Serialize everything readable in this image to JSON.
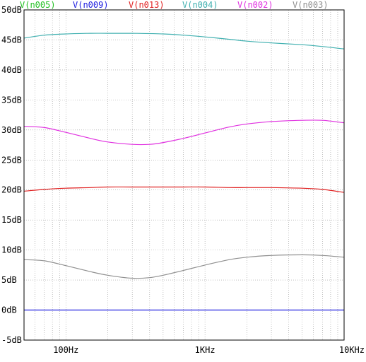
{
  "chart_data": {
    "type": "line",
    "title": "",
    "xlabel": "",
    "ylabel": "",
    "xscale": "log",
    "xlim": [
      50,
      10000
    ],
    "ylim": [
      -5,
      50
    ],
    "grid": true,
    "legend_position": "top",
    "x_ticks": [
      {
        "value": 100,
        "label": "100Hz"
      },
      {
        "value": 1000,
        "label": "1KHz"
      },
      {
        "value": 10000,
        "label": "10KHz"
      }
    ],
    "y_ticks": [
      {
        "value": 50,
        "label": "50dB"
      },
      {
        "value": 45,
        "label": "45dB"
      },
      {
        "value": 40,
        "label": "40dB"
      },
      {
        "value": 35,
        "label": "35dB"
      },
      {
        "value": 30,
        "label": "30dB"
      },
      {
        "value": 25,
        "label": "25dB"
      },
      {
        "value": 20,
        "label": "20dB"
      },
      {
        "value": 15,
        "label": "15dB"
      },
      {
        "value": 10,
        "label": "10dB"
      },
      {
        "value": 5,
        "label": "5dB"
      },
      {
        "value": 0,
        "label": "0dB"
      },
      {
        "value": -5,
        "label": "-5dB"
      }
    ],
    "series": [
      {
        "name": "V(n005)",
        "color": "#22c022",
        "x": [],
        "values": []
      },
      {
        "name": "V(n009)",
        "color": "#2020e0",
        "x": [
          50,
          100,
          200,
          500,
          1000,
          2000,
          5000,
          10000
        ],
        "values": [
          0,
          0,
          0,
          0,
          0,
          0,
          0,
          0
        ]
      },
      {
        "name": "V(n013)",
        "color": "#e02020",
        "x": [
          50,
          70,
          100,
          150,
          200,
          300,
          500,
          700,
          1000,
          1500,
          2000,
          3000,
          5000,
          7000,
          10000
        ],
        "values": [
          19.8,
          20.1,
          20.3,
          20.4,
          20.5,
          20.5,
          20.5,
          20.5,
          20.5,
          20.4,
          20.4,
          20.4,
          20.3,
          20.1,
          19.6
        ]
      },
      {
        "name": "V(n004)",
        "color": "#40b0b0",
        "x": [
          50,
          70,
          100,
          150,
          200,
          300,
          500,
          700,
          1000,
          1500,
          2000,
          3000,
          5000,
          7000,
          10000
        ],
        "values": [
          45.3,
          45.8,
          46.0,
          46.1,
          46.1,
          46.1,
          46.0,
          45.8,
          45.5,
          45.1,
          44.8,
          44.5,
          44.2,
          43.9,
          43.5
        ]
      },
      {
        "name": "V(n002)",
        "color": "#e030e0",
        "x": [
          50,
          70,
          100,
          150,
          200,
          300,
          400,
          500,
          700,
          1000,
          1500,
          2000,
          3000,
          5000,
          7000,
          10000
        ],
        "values": [
          30.6,
          30.4,
          29.6,
          28.6,
          28.0,
          27.6,
          27.6,
          27.9,
          28.6,
          29.5,
          30.5,
          31.0,
          31.4,
          31.6,
          31.6,
          31.2
        ]
      },
      {
        "name": "V(n003)",
        "color": "#909090",
        "x": [
          50,
          70,
          100,
          150,
          200,
          300,
          400,
          500,
          700,
          1000,
          1500,
          2000,
          3000,
          5000,
          7000,
          10000
        ],
        "values": [
          8.4,
          8.2,
          7.4,
          6.4,
          5.8,
          5.3,
          5.4,
          5.8,
          6.6,
          7.5,
          8.4,
          8.8,
          9.1,
          9.2,
          9.1,
          8.8
        ]
      }
    ]
  }
}
